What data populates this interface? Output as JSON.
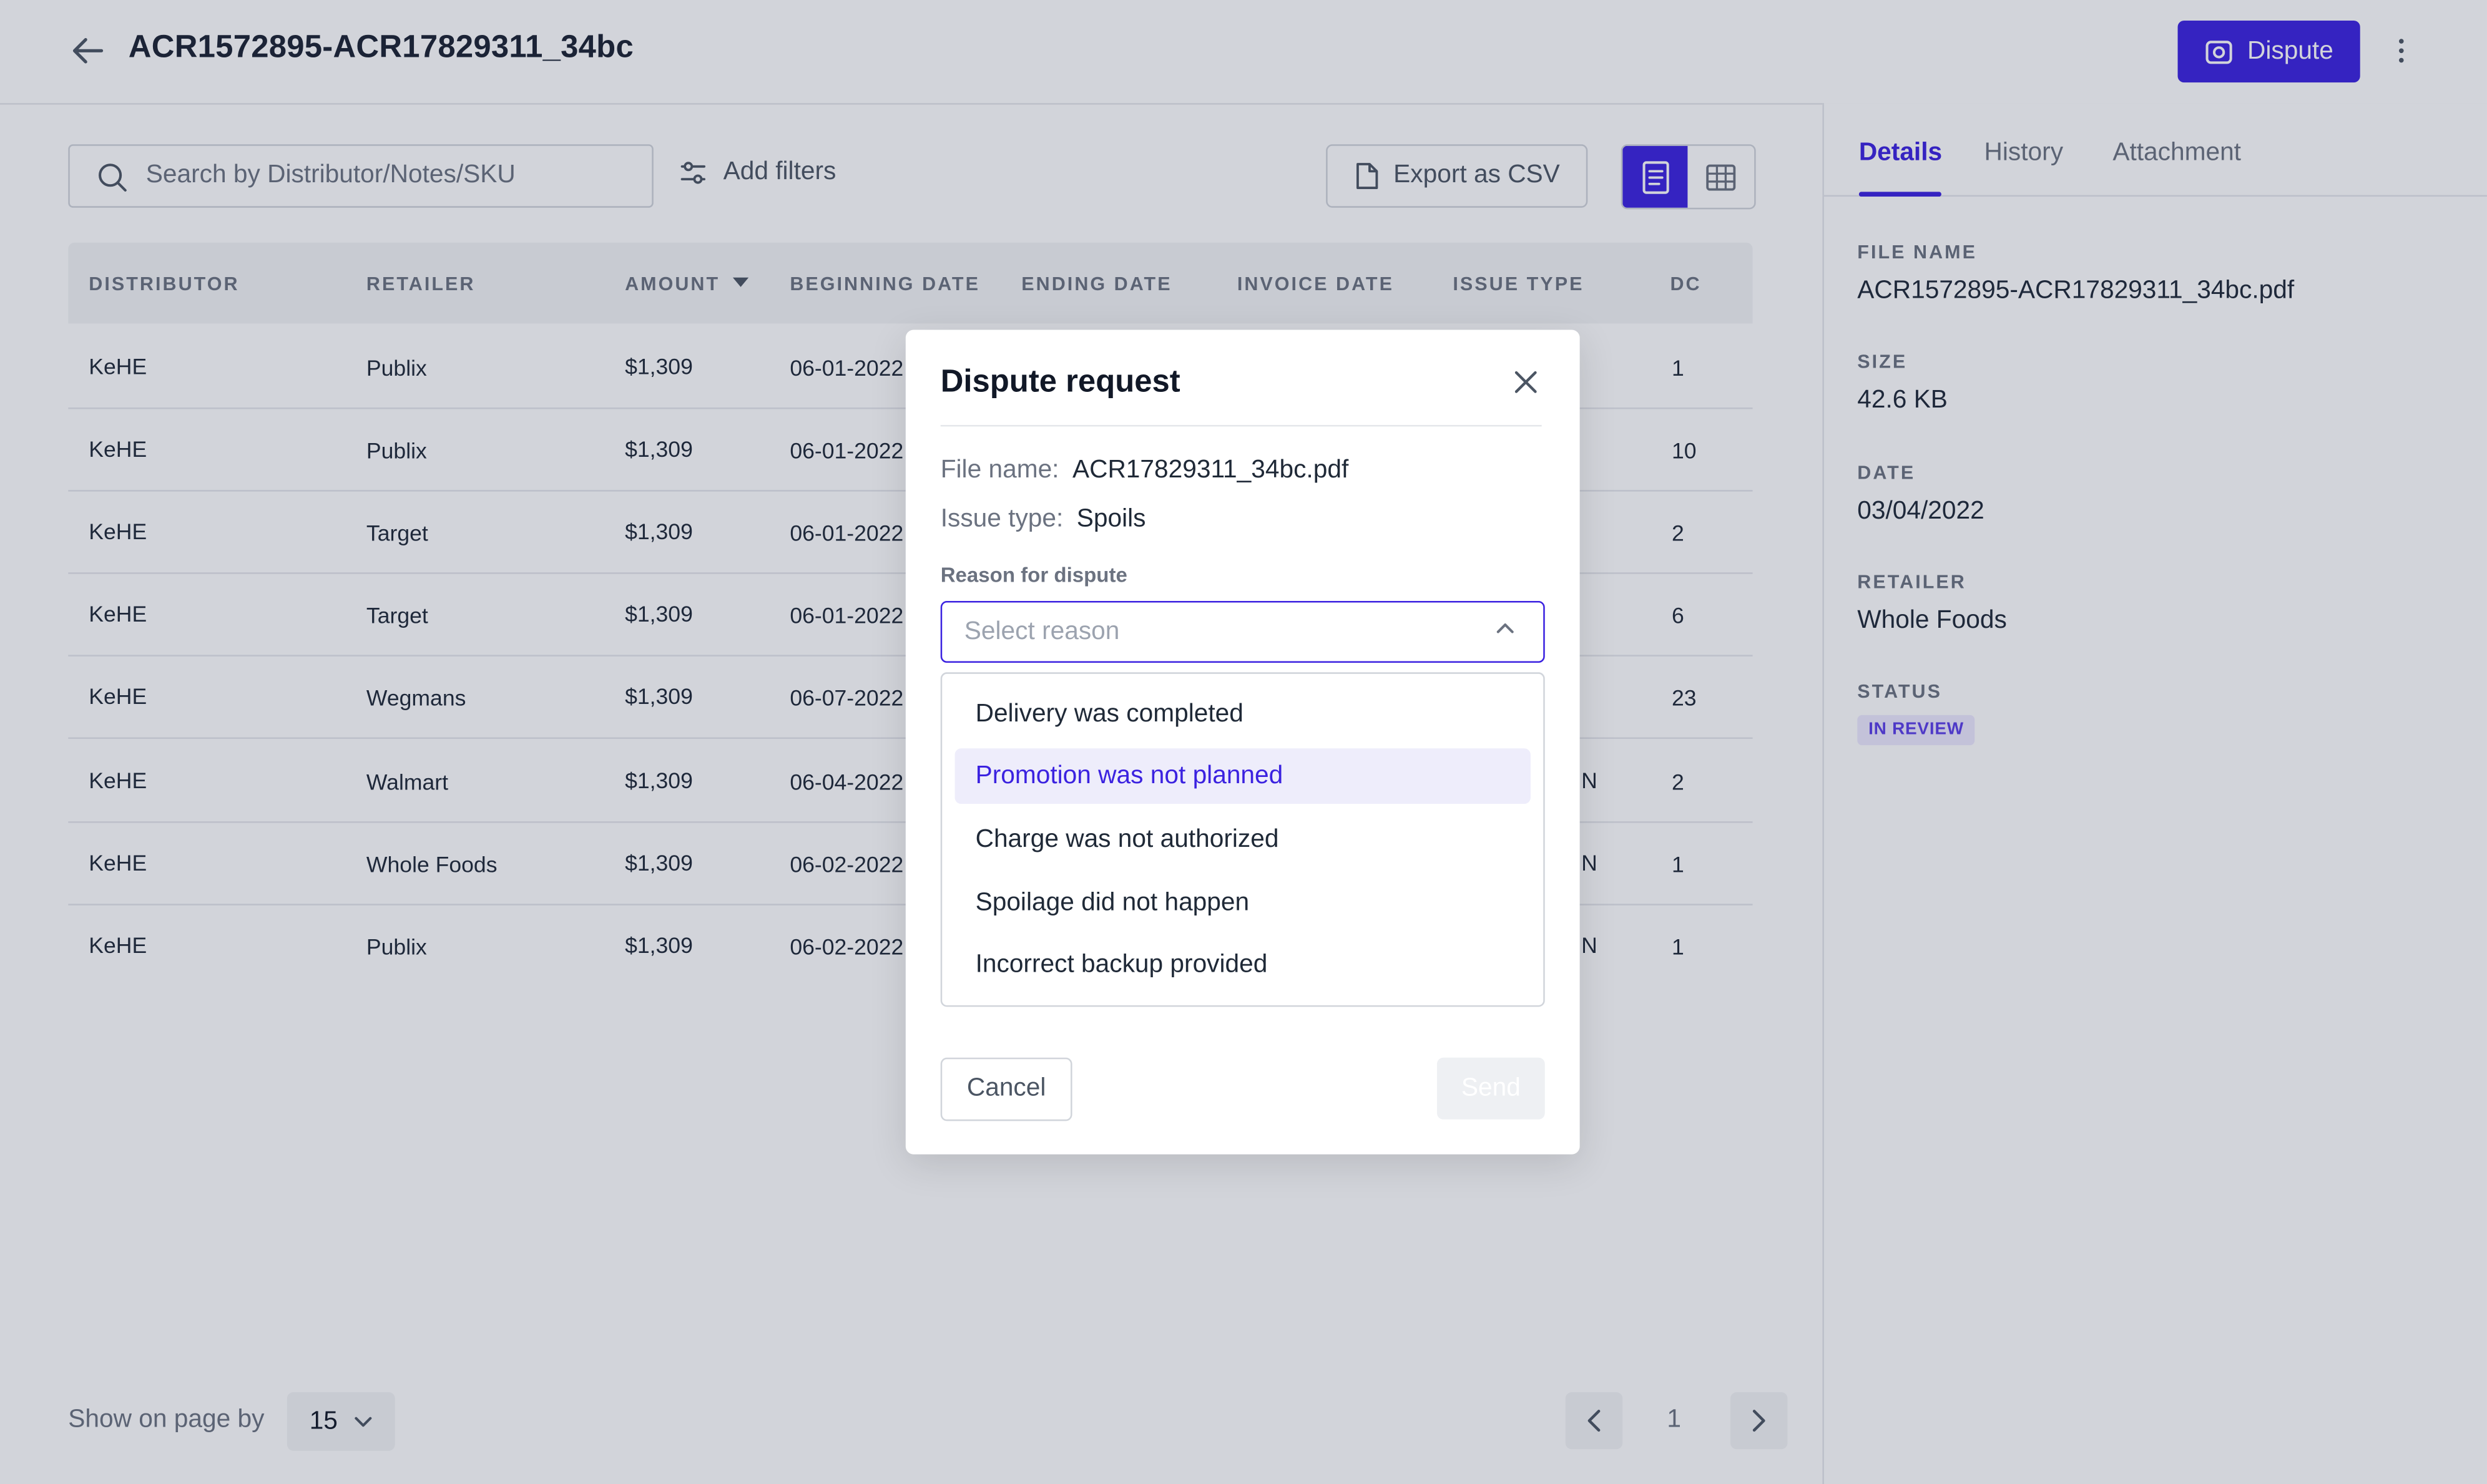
{
  "header": {
    "title": "ACR1572895-ACR17829311_34bc",
    "dispute_label": "Dispute"
  },
  "toolbar": {
    "search_placeholder": "Search by Distributor/Notes/SKU",
    "add_filters_label": "Add filters",
    "export_label": "Export as CSV"
  },
  "table": {
    "columns": [
      "DISTRIBUTOR",
      "RETAILER",
      "AMOUNT",
      "BEGINNING DATE",
      "ENDING DATE",
      "INVOICE DATE",
      "ISSUE TYPE",
      "DC"
    ],
    "rows": [
      {
        "distributor": "KeHE",
        "retailer": "Publix",
        "amount": "$1,309",
        "beginning_date": "06-01-2022",
        "issue_type": "",
        "dc": "1"
      },
      {
        "distributor": "KeHE",
        "retailer": "Publix",
        "amount": "$1,309",
        "beginning_date": "06-01-2022",
        "issue_type": "",
        "dc": "10"
      },
      {
        "distributor": "KeHE",
        "retailer": "Target",
        "amount": "$1,309",
        "beginning_date": "06-01-2022",
        "issue_type": "",
        "dc": "2"
      },
      {
        "distributor": "KeHE",
        "retailer": "Target",
        "amount": "$1,309",
        "beginning_date": "06-01-2022",
        "issue_type": "",
        "dc": "6"
      },
      {
        "distributor": "KeHE",
        "retailer": "Wegmans",
        "amount": "$1,309",
        "beginning_date": "06-07-2022",
        "issue_type": "",
        "dc": "23"
      },
      {
        "distributor": "KeHE",
        "retailer": "Walmart",
        "amount": "$1,309",
        "beginning_date": "06-04-2022",
        "issue_type": "N",
        "dc": "2"
      },
      {
        "distributor": "KeHE",
        "retailer": "Whole Foods",
        "amount": "$1,309",
        "beginning_date": "06-02-2022",
        "issue_type": "N",
        "dc": "1"
      },
      {
        "distributor": "KeHE",
        "retailer": "Publix",
        "amount": "$1,309",
        "beginning_date": "06-02-2022",
        "issue_type": "N",
        "dc": "1"
      }
    ]
  },
  "footer": {
    "show_label": "Show on page by",
    "page_size": "15",
    "current_page": "1"
  },
  "details": {
    "tabs": [
      "Details",
      "History",
      "Attachment"
    ],
    "active_tab": "Details",
    "fields": [
      {
        "label": "FILE NAME",
        "value": "ACR1572895-ACR17829311_34bc.pdf"
      },
      {
        "label": "SIZE",
        "value": "42.6 KB"
      },
      {
        "label": "DATE",
        "value": "03/04/2022"
      },
      {
        "label": "RETAILER",
        "value": "Whole Foods"
      }
    ],
    "status_label": "STATUS",
    "status_value": "IN REVIEW"
  },
  "modal": {
    "title": "Dispute request",
    "file_name_label": "File name:",
    "file_name_value": "ACR17829311_34bc.pdf",
    "issue_type_label": "Issue type:",
    "issue_type_value": "Spoils",
    "reason_label": "Reason for dispute",
    "select_placeholder": "Select reason",
    "options": [
      "Delivery was completed",
      "Promotion was not planned",
      "Charge was not authorized",
      "Spoilage did not happen",
      "Incorrect backup provided"
    ],
    "highlighted_option": "Promotion was not planned",
    "cancel_label": "Cancel",
    "send_label": "Send"
  },
  "colors": {
    "accent": "#3b22e0",
    "badge_bg": "#ede9fe",
    "overlay": "#1f2944"
  },
  "icons": [
    "arrow-left-icon",
    "camera-icon",
    "kebab-menu-icon",
    "search-icon",
    "sliders-icon",
    "file-icon",
    "document-view-icon",
    "grid-view-icon",
    "sort-down-icon",
    "chevron-down-icon",
    "chevron-left-icon",
    "chevron-right-icon",
    "close-icon",
    "chevron-up-icon"
  ]
}
